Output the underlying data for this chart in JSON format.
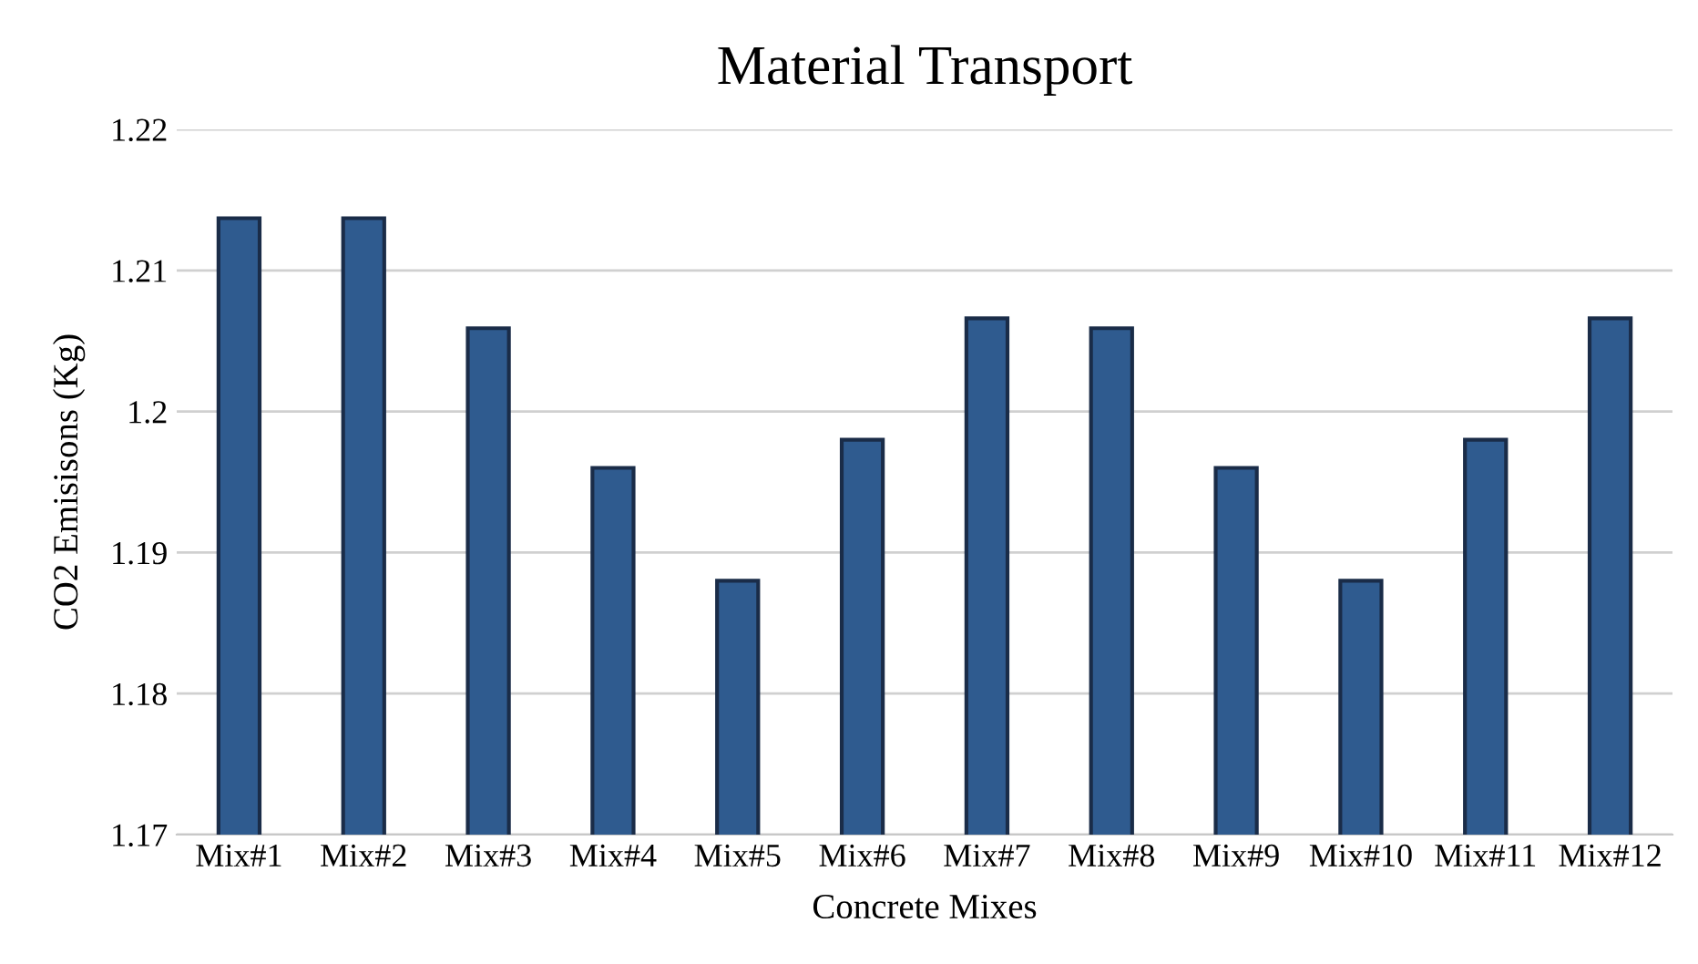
{
  "chart_data": {
    "type": "bar",
    "title": "Material Transport",
    "xlabel": "Concrete Mixes",
    "ylabel": "CO2 Emisisons (Kg)",
    "categories": [
      "Mix#1",
      "Mix#2",
      "Mix#3",
      "Mix#4",
      "Mix#5",
      "Mix#6",
      "Mix#7",
      "Mix#8",
      "Mix#9",
      "Mix#10",
      "Mix#11",
      "Mix#12"
    ],
    "values": [
      1.2137,
      1.2137,
      1.2059,
      1.196,
      1.188,
      1.198,
      1.2066,
      1.2059,
      1.196,
      1.188,
      1.198,
      1.2066
    ],
    "color": "#2f5b8f",
    "ylim": [
      1.17,
      1.22
    ],
    "yticks": [
      1.17,
      1.18,
      1.19,
      1.2,
      1.21,
      1.22
    ],
    "grid": "y",
    "legend": false
  }
}
